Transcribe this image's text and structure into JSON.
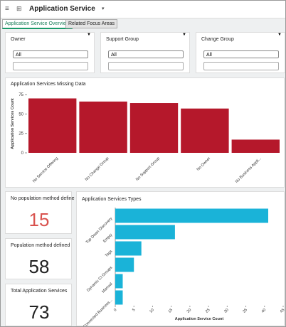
{
  "header": {
    "title": "Application Service"
  },
  "tabs": [
    "Application Service Overview",
    "Related Focus Areas"
  ],
  "filters": [
    {
      "label": "Owner",
      "value": "All"
    },
    {
      "label": "Support Group",
      "value": "All"
    },
    {
      "label": "Change Group",
      "value": "All"
    }
  ],
  "chart_data": [
    {
      "type": "bar",
      "title": "Application Services Missing Data",
      "y_label": "Application Services Count",
      "categories": [
        "No Service Offering",
        "No Change Group",
        "No Support Group",
        "No Owner",
        "No Business Appli..."
      ],
      "values": [
        70,
        66,
        64,
        57,
        17
      ],
      "color": "#b5182b",
      "ylim": [
        0,
        75
      ],
      "yticks": [
        0,
        25,
        50,
        75
      ]
    },
    {
      "type": "hbar",
      "title": "Application Services Types",
      "x_label": "Application Service Count",
      "categories": [
        "Top Down Discovery",
        "Empty",
        "Tags",
        "Dynamic CI Groups",
        "Manual",
        "Connected Business..."
      ],
      "values": [
        41,
        16,
        7,
        5,
        2,
        2
      ],
      "color": "#1ab3d8",
      "xlim": [
        0,
        45
      ],
      "xticks": [
        0,
        5,
        10,
        15,
        20,
        25,
        30,
        35,
        40,
        45
      ]
    }
  ],
  "kpis": [
    {
      "label": "No population method define",
      "value": 15,
      "color": "#d9534f"
    },
    {
      "label": "Population method defined",
      "value": 58,
      "color": "#222"
    },
    {
      "label": "Total Application Services",
      "value": 73,
      "color": "#222"
    }
  ]
}
